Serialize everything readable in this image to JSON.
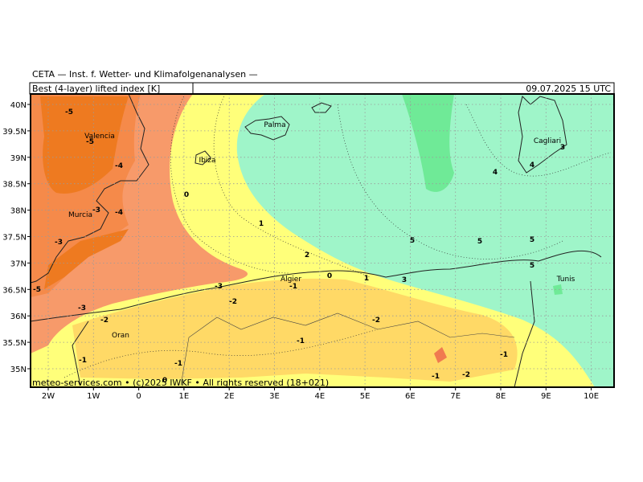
{
  "header": {
    "institute": "CETA — Inst. f. Wetter- und Klimafolgenanalysen —",
    "parameter": "Best (4-layer) lifted index [K]",
    "valid_time": "09.07.2025 15 UTC"
  },
  "map": {
    "lat_ticks": [
      "40N",
      "39.5N",
      "39N",
      "38.5N",
      "38N",
      "37.5N",
      "37N",
      "36.5N",
      "36N",
      "35.5N",
      "35N"
    ],
    "lon_ticks": [
      "2W",
      "1W",
      "0",
      "1E",
      "2E",
      "3E",
      "4E",
      "5E",
      "6E",
      "7E",
      "8E",
      "9E",
      "10E"
    ],
    "cities": [
      "Palma",
      "Ibiza",
      "Valencia",
      "Murcia",
      "Algier",
      "Oran",
      "Cagliari",
      "Tunis"
    ],
    "contour_labels": [
      "-5",
      "-5",
      "-4",
      "-3",
      "-4",
      "-3",
      "-5",
      "-3",
      "-2",
      "-1",
      "-1",
      "0",
      "0",
      "1",
      "2",
      "0",
      "-1",
      "-3",
      "-2",
      "1",
      "3",
      "-2",
      "-1",
      "-1",
      "-2",
      "-1",
      "5",
      "5",
      "5",
      "5",
      "4",
      "4",
      "3"
    ]
  },
  "footer": "meteo-services.com • (c)2025 IWKF • All rights reserved (18+021)"
}
